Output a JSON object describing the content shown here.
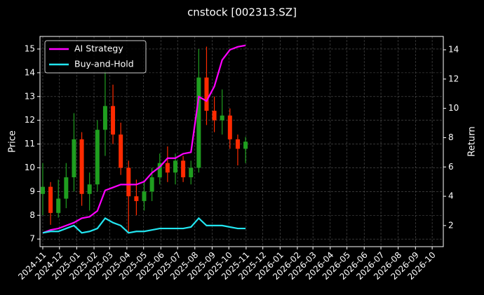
{
  "chart_data": {
    "type": "candlestick",
    "title": "cnstock [002313.SZ]",
    "ylabel": "Price",
    "y2label": "Return",
    "x": [
      "2024-11-01",
      "2024-11-15",
      "2024-11-29",
      "2024-12-13",
      "2024-12-27",
      "2025-01-10",
      "2025-01-24",
      "2025-02-07",
      "2025-02-21",
      "2025-03-07",
      "2025-03-21",
      "2025-04-04",
      "2025-04-18",
      "2025-05-02",
      "2025-05-16",
      "2025-05-30",
      "2025-06-13",
      "2025-06-27",
      "2025-07-11",
      "2025-07-25",
      "2025-08-08",
      "2025-08-22",
      "2025-09-05",
      "2025-09-19",
      "2025-10-03",
      "2025-10-17",
      "2025-10-31"
    ],
    "open": [
      8.9,
      9.2,
      8.1,
      8.7,
      9.6,
      11.2,
      8.9,
      9.3,
      11.6,
      12.6,
      11.4,
      10.0,
      8.8,
      8.6,
      9.0,
      9.6,
      10.2,
      9.8,
      10.3,
      9.6,
      10.0,
      13.8,
      12.4,
      12.0,
      12.2,
      11.2,
      10.8
    ],
    "high": [
      10.2,
      9.4,
      9.5,
      10.2,
      12.3,
      11.5,
      9.8,
      12.0,
      14.1,
      13.5,
      11.9,
      10.3,
      9.5,
      9.4,
      10.0,
      10.6,
      10.9,
      10.6,
      10.5,
      10.3,
      15.0,
      15.1,
      13.0,
      13.3,
      12.5,
      11.4,
      11.3
    ],
    "low": [
      8.0,
      7.6,
      7.9,
      8.3,
      9.0,
      8.4,
      8.2,
      9.0,
      10.5,
      11.0,
      9.7,
      7.3,
      8.0,
      8.2,
      8.6,
      9.3,
      9.4,
      9.3,
      9.4,
      9.3,
      9.8,
      11.8,
      11.5,
      11.4,
      10.8,
      10.1,
      10.2
    ],
    "close": [
      9.2,
      8.1,
      8.7,
      9.6,
      11.2,
      8.9,
      9.3,
      11.6,
      12.6,
      11.4,
      10.0,
      8.8,
      8.6,
      9.0,
      9.6,
      10.2,
      9.8,
      10.3,
      9.6,
      10.0,
      13.8,
      12.4,
      12.0,
      12.2,
      11.2,
      10.8,
      11.1
    ],
    "up_color": "#1f9e1f",
    "down_color": "#ff2a00",
    "series": [
      {
        "name": "AI Strategy",
        "color": "#ff00ff",
        "axis": "y2",
        "values": [
          1.5,
          1.7,
          1.8,
          2.0,
          2.2,
          2.5,
          2.6,
          3.0,
          4.4,
          4.6,
          4.8,
          4.8,
          4.8,
          5.0,
          5.6,
          6.0,
          6.6,
          6.6,
          6.9,
          7.0,
          10.8,
          10.5,
          11.5,
          13.3,
          14.0,
          14.2,
          14.3
        ]
      },
      {
        "name": "Buy-and-Hold",
        "color": "#22e5f0",
        "axis": "y2",
        "values": [
          1.5,
          1.6,
          1.6,
          1.8,
          2.0,
          1.5,
          1.6,
          1.8,
          2.5,
          2.2,
          2.0,
          1.5,
          1.6,
          1.6,
          1.7,
          1.8,
          1.8,
          1.8,
          1.8,
          1.9,
          2.5,
          2.0,
          2.0,
          2.0,
          1.9,
          1.8,
          1.8
        ]
      }
    ],
    "xlim": [
      "2024-10-27",
      "2026-10-21"
    ],
    "xticks": [
      "2024-11",
      "2024-12",
      "2025-01",
      "2025-02",
      "2025-03",
      "2025-04",
      "2025-05",
      "2025-06",
      "2025-07",
      "2025-08",
      "2025-09",
      "2025-10",
      "2025-11",
      "2025-12",
      "2026-01",
      "2026-02",
      "2026-03",
      "2026-04",
      "2026-05",
      "2026-06",
      "2026-07",
      "2026-08",
      "2026-09",
      "2026-10"
    ],
    "ylim": [
      6.68,
      15.53
    ],
    "yticks": [
      7,
      8,
      9,
      10,
      11,
      12,
      13,
      14,
      15
    ],
    "y2lim": [
      0.56,
      14.91
    ],
    "y2ticks": [
      2,
      4,
      6,
      8,
      10,
      12,
      14
    ],
    "grid": true,
    "legend": "upper-left"
  }
}
